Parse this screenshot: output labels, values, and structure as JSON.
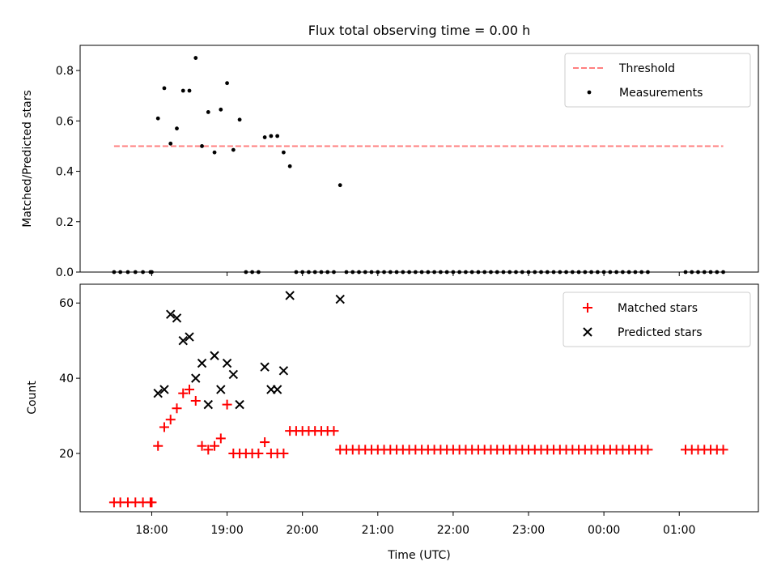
{
  "figure": {
    "title": "Flux total observing time = 0.00 h",
    "xlabel": "Time (UTC)",
    "xticks": [
      {
        "label": "18:00",
        "h": 18
      },
      {
        "label": "19:00",
        "h": 19
      },
      {
        "label": "20:00",
        "h": 20
      },
      {
        "label": "21:00",
        "h": 21
      },
      {
        "label": "22:00",
        "h": 22
      },
      {
        "label": "23:00",
        "h": 23
      },
      {
        "label": "00:00",
        "h": 24
      },
      {
        "label": "01:00",
        "h": 25
      }
    ]
  },
  "chart_data": [
    {
      "type": "scatter",
      "ylabel": "Matched/Predicted stars",
      "ylim": [
        0,
        0.9
      ],
      "yticks": [
        0.0,
        0.2,
        0.4,
        0.6,
        0.8
      ],
      "ytick_labels": [
        "0.0",
        "0.2",
        "0.4",
        "0.6",
        "0.8"
      ],
      "legend_position": "top-right",
      "lines": [
        {
          "name": "Threshold",
          "color": "#ff7f7f",
          "style": "dashed",
          "y": 0.5,
          "x_from": "17:30",
          "x_to": "01:35"
        }
      ],
      "series": [
        {
          "name": "Measurements",
          "color": "#000000",
          "marker": "dot",
          "points": [
            [
              "17:30",
              0
            ],
            [
              "17:35",
              0
            ],
            [
              "17:41",
              0
            ],
            [
              "17:47",
              0
            ],
            [
              "17:53",
              0
            ],
            [
              "17:59",
              0
            ],
            [
              "18:00",
              0
            ],
            [
              "18:05",
              0.61
            ],
            [
              "18:10",
              0.73
            ],
            [
              "18:15",
              0.51
            ],
            [
              "18:20",
              0.57
            ],
            [
              "18:25",
              0.72
            ],
            [
              "18:30",
              0.72
            ],
            [
              "18:35",
              0.85
            ],
            [
              "18:40",
              0.5
            ],
            [
              "18:45",
              0.635
            ],
            [
              "18:50",
              0.475
            ],
            [
              "18:55",
              0.645
            ],
            [
              "19:00",
              0.75
            ],
            [
              "19:05",
              0.485
            ],
            [
              "19:10",
              0.605
            ],
            [
              "19:15",
              0
            ],
            [
              "19:20",
              0
            ],
            [
              "19:25",
              0
            ],
            [
              "19:30",
              0.535
            ],
            [
              "19:35",
              0.54
            ],
            [
              "19:40",
              0.54
            ],
            [
              "19:45",
              0.475
            ],
            [
              "19:50",
              0.42
            ],
            [
              "19:55",
              0
            ],
            [
              "20:00",
              0
            ],
            [
              "20:05",
              0
            ],
            [
              "20:10",
              0
            ],
            [
              "20:15",
              0
            ],
            [
              "20:20",
              0
            ],
            [
              "20:25",
              0
            ],
            [
              "20:30",
              0.345
            ],
            [
              "20:35",
              0
            ],
            [
              "20:40",
              0
            ],
            [
              "20:45",
              0
            ],
            [
              "20:50",
              0
            ],
            [
              "20:55",
              0
            ],
            [
              "21:00",
              0
            ],
            [
              "21:05",
              0
            ],
            [
              "21:10",
              0
            ],
            [
              "21:15",
              0
            ],
            [
              "21:20",
              0
            ],
            [
              "21:25",
              0
            ],
            [
              "21:30",
              0
            ],
            [
              "21:35",
              0
            ],
            [
              "21:40",
              0
            ],
            [
              "21:45",
              0
            ],
            [
              "21:50",
              0
            ],
            [
              "21:55",
              0
            ],
            [
              "22:00",
              0
            ],
            [
              "22:05",
              0
            ],
            [
              "22:10",
              0
            ],
            [
              "22:15",
              0
            ],
            [
              "22:20",
              0
            ],
            [
              "22:25",
              0
            ],
            [
              "22:30",
              0
            ],
            [
              "22:35",
              0
            ],
            [
              "22:40",
              0
            ],
            [
              "22:45",
              0
            ],
            [
              "22:50",
              0
            ],
            [
              "22:55",
              0
            ],
            [
              "23:00",
              0
            ],
            [
              "23:05",
              0
            ],
            [
              "23:10",
              0
            ],
            [
              "23:15",
              0
            ],
            [
              "23:20",
              0
            ],
            [
              "23:25",
              0
            ],
            [
              "23:30",
              0
            ],
            [
              "23:35",
              0
            ],
            [
              "23:40",
              0
            ],
            [
              "23:45",
              0
            ],
            [
              "23:50",
              0
            ],
            [
              "23:55",
              0
            ],
            [
              "00:00",
              0
            ],
            [
              "00:05",
              0
            ],
            [
              "00:10",
              0
            ],
            [
              "00:15",
              0
            ],
            [
              "00:20",
              0
            ],
            [
              "00:25",
              0
            ],
            [
              "00:30",
              0
            ],
            [
              "00:35",
              0
            ],
            [
              "01:05",
              0
            ],
            [
              "01:10",
              0
            ],
            [
              "01:15",
              0
            ],
            [
              "01:20",
              0
            ],
            [
              "01:25",
              0
            ],
            [
              "01:30",
              0
            ],
            [
              "01:35",
              0
            ]
          ]
        }
      ]
    },
    {
      "type": "scatter",
      "ylabel": "Count",
      "ylim": [
        4.5,
        65
      ],
      "yticks": [
        20,
        40,
        60
      ],
      "ytick_labels": [
        "20",
        "40",
        "60"
      ],
      "legend_position": "top-right",
      "series": [
        {
          "name": "Matched stars",
          "color": "#ff0000",
          "marker": "plus",
          "points": [
            [
              "17:30",
              7
            ],
            [
              "17:35",
              7
            ],
            [
              "17:41",
              7
            ],
            [
              "17:47",
              7
            ],
            [
              "17:53",
              7
            ],
            [
              "17:59",
              7
            ],
            [
              "18:00",
              7
            ],
            [
              "18:05",
              22
            ],
            [
              "18:10",
              27
            ],
            [
              "18:15",
              29
            ],
            [
              "18:20",
              32
            ],
            [
              "18:25",
              36
            ],
            [
              "18:30",
              37
            ],
            [
              "18:35",
              34
            ],
            [
              "18:40",
              22
            ],
            [
              "18:45",
              21
            ],
            [
              "18:50",
              22
            ],
            [
              "18:55",
              24
            ],
            [
              "19:00",
              33
            ],
            [
              "19:05",
              20
            ],
            [
              "19:10",
              20
            ],
            [
              "19:15",
              20
            ],
            [
              "19:20",
              20
            ],
            [
              "19:25",
              20
            ],
            [
              "19:30",
              23
            ],
            [
              "19:35",
              20
            ],
            [
              "19:40",
              20
            ],
            [
              "19:45",
              20
            ],
            [
              "19:50",
              26
            ],
            [
              "19:55",
              26
            ],
            [
              "20:00",
              26
            ],
            [
              "20:05",
              26
            ],
            [
              "20:10",
              26
            ],
            [
              "20:15",
              26
            ],
            [
              "20:20",
              26
            ],
            [
              "20:25",
              26
            ],
            [
              "20:30",
              21
            ],
            [
              "20:35",
              21
            ],
            [
              "20:40",
              21
            ],
            [
              "20:45",
              21
            ],
            [
              "20:50",
              21
            ],
            [
              "20:55",
              21
            ],
            [
              "21:00",
              21
            ],
            [
              "21:05",
              21
            ],
            [
              "21:10",
              21
            ],
            [
              "21:15",
              21
            ],
            [
              "21:20",
              21
            ],
            [
              "21:25",
              21
            ],
            [
              "21:30",
              21
            ],
            [
              "21:35",
              21
            ],
            [
              "21:40",
              21
            ],
            [
              "21:45",
              21
            ],
            [
              "21:50",
              21
            ],
            [
              "21:55",
              21
            ],
            [
              "22:00",
              21
            ],
            [
              "22:05",
              21
            ],
            [
              "22:10",
              21
            ],
            [
              "22:15",
              21
            ],
            [
              "22:20",
              21
            ],
            [
              "22:25",
              21
            ],
            [
              "22:30",
              21
            ],
            [
              "22:35",
              21
            ],
            [
              "22:40",
              21
            ],
            [
              "22:45",
              21
            ],
            [
              "22:50",
              21
            ],
            [
              "22:55",
              21
            ],
            [
              "23:00",
              21
            ],
            [
              "23:05",
              21
            ],
            [
              "23:10",
              21
            ],
            [
              "23:15",
              21
            ],
            [
              "23:20",
              21
            ],
            [
              "23:25",
              21
            ],
            [
              "23:30",
              21
            ],
            [
              "23:35",
              21
            ],
            [
              "23:40",
              21
            ],
            [
              "23:45",
              21
            ],
            [
              "23:50",
              21
            ],
            [
              "23:55",
              21
            ],
            [
              "00:00",
              21
            ],
            [
              "00:05",
              21
            ],
            [
              "00:10",
              21
            ],
            [
              "00:15",
              21
            ],
            [
              "00:20",
              21
            ],
            [
              "00:25",
              21
            ],
            [
              "00:30",
              21
            ],
            [
              "00:35",
              21
            ],
            [
              "01:05",
              21
            ],
            [
              "01:10",
              21
            ],
            [
              "01:15",
              21
            ],
            [
              "01:20",
              21
            ],
            [
              "01:25",
              21
            ],
            [
              "01:30",
              21
            ],
            [
              "01:35",
              21
            ]
          ]
        },
        {
          "name": "Predicted stars",
          "color": "#000000",
          "marker": "x",
          "points": [
            [
              "18:05",
              36
            ],
            [
              "18:10",
              37
            ],
            [
              "18:15",
              57
            ],
            [
              "18:20",
              56
            ],
            [
              "18:25",
              50
            ],
            [
              "18:30",
              51
            ],
            [
              "18:35",
              40
            ],
            [
              "18:40",
              44
            ],
            [
              "18:45",
              33
            ],
            [
              "18:50",
              46
            ],
            [
              "18:55",
              37
            ],
            [
              "19:00",
              44
            ],
            [
              "19:05",
              41
            ],
            [
              "19:10",
              33
            ],
            [
              "19:30",
              43
            ],
            [
              "19:35",
              37
            ],
            [
              "19:40",
              37
            ],
            [
              "19:45",
              42
            ],
            [
              "19:50",
              62
            ],
            [
              "20:30",
              61
            ]
          ]
        }
      ]
    }
  ]
}
